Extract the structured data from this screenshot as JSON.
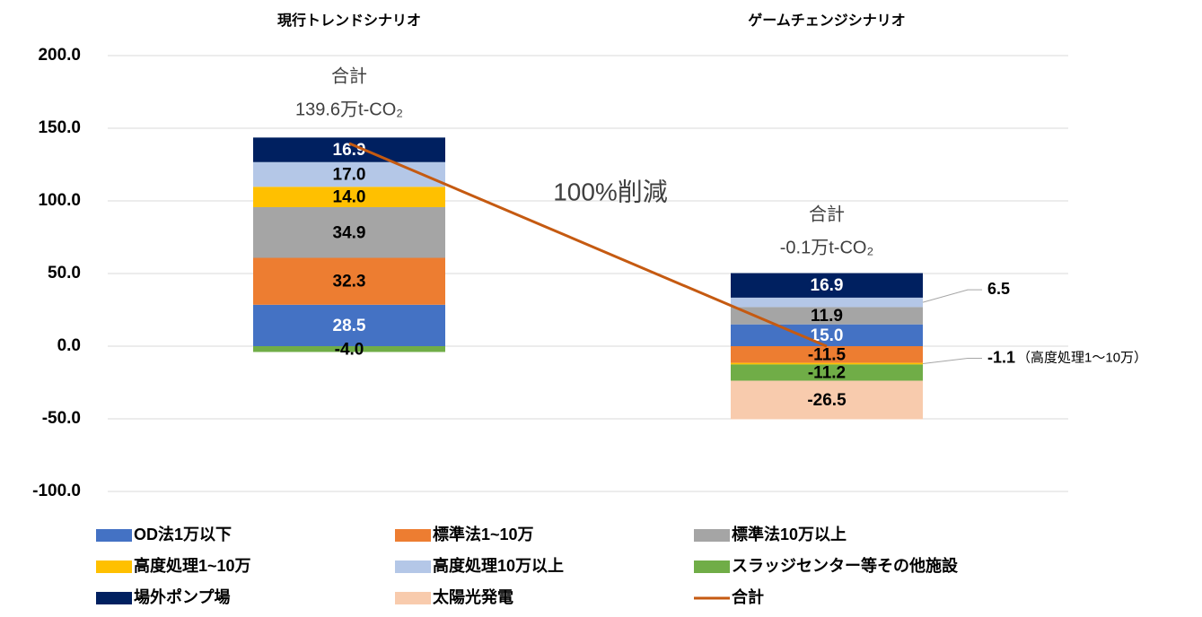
{
  "chart_data": {
    "type": "bar",
    "stacked": true,
    "categories": [
      "現行トレンドシナリオ",
      "ゲームチェンジシナリオ"
    ],
    "series": [
      {
        "name": "OD法1万以下",
        "color": "#4472c4",
        "values": [
          28.5,
          15.0
        ],
        "value_labels": [
          "28.5",
          "15.0"
        ]
      },
      {
        "name": "標準法1~10万",
        "color": "#ed7d31",
        "values": [
          32.3,
          -11.5
        ],
        "value_labels": [
          "32.3",
          "-11.5"
        ]
      },
      {
        "name": "標準法10万以上",
        "color": "#a5a5a5",
        "values": [
          34.9,
          11.9
        ],
        "value_labels": [
          "34.9",
          "11.9"
        ]
      },
      {
        "name": "高度処理1~10万",
        "color": "#ffc000",
        "values": [
          14.0,
          -1.1
        ],
        "value_labels": [
          "14.0",
          "-1.1"
        ]
      },
      {
        "name": "高度処理10万以上",
        "color": "#b4c7e7",
        "values": [
          17.0,
          6.5
        ],
        "value_labels": [
          "17.0",
          "6.5"
        ]
      },
      {
        "name": "スラッジセンター等その他施設",
        "color": "#70ad47",
        "values": [
          -4.0,
          -11.2
        ],
        "value_labels": [
          "-4.0",
          "-11.2"
        ]
      },
      {
        "name": "場外ポンプ場",
        "color": "#002060",
        "values": [
          16.9,
          16.9
        ],
        "value_labels": [
          "16.9",
          "16.9"
        ]
      },
      {
        "name": "太陽光発電",
        "color": "#f8cbad",
        "values": [
          null,
          -26.5
        ],
        "value_labels": [
          null,
          "-26.5"
        ]
      },
      {
        "name": "合計",
        "type": "line",
        "color": "#c55a11",
        "values": [
          139.6,
          -0.1
        ],
        "value_labels": [
          "139.6万t-CO₂",
          "-0.1万t-CO₂"
        ]
      }
    ],
    "annotations": [
      "100%削減",
      "（高度処理1～10万）"
    ],
    "ylim": [
      -100,
      200
    ],
    "yticks": [
      {
        "value": -100,
        "label": "-100.0"
      },
      {
        "value": -50,
        "label": "-50.0"
      },
      {
        "value": 0,
        "label": "0.0"
      },
      {
        "value": 50,
        "label": "50.0"
      },
      {
        "value": 100,
        "label": "100.0"
      },
      {
        "value": 150,
        "label": "150.0"
      },
      {
        "value": 200,
        "label": "200.0"
      }
    ],
    "grid": true,
    "legend": "bottom"
  }
}
